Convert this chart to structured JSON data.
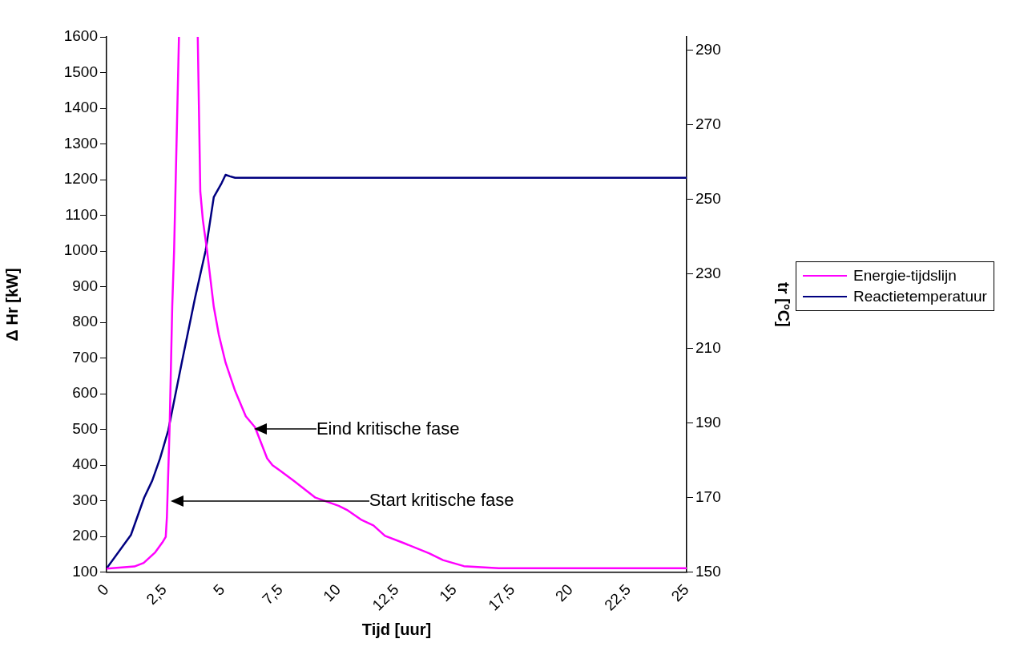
{
  "chart_data": {
    "type": "line",
    "xlabel": "Tijd [uur]",
    "ylabel": "Δ Hr [kW]",
    "y2label": "tr [°C]",
    "xlim": [
      0,
      25
    ],
    "xticks": [
      0,
      {
        "value": 2.5,
        "label": "2,5"
      },
      5,
      {
        "value": 7.5,
        "label": "7,5"
      },
      10,
      {
        "value": 12.5,
        "label": "12,5"
      },
      15,
      {
        "value": 17.5,
        "label": "17,5"
      },
      20,
      {
        "value": 22.5,
        "label": "22,5"
      },
      25
    ],
    "ylim": [
      100,
      1600
    ],
    "yticks": [
      100,
      200,
      300,
      400,
      500,
      600,
      700,
      800,
      900,
      1000,
      1100,
      1200,
      1300,
      1400,
      1500,
      1600
    ],
    "y2lim": [
      150,
      293.6
    ],
    "y2ticks": [
      150,
      170,
      190,
      210,
      230,
      250,
      270,
      290
    ],
    "grid": false,
    "legend": "right",
    "marker": "none",
    "line_style": "solid",
    "series": [
      {
        "name": "Energie-tijdslijn",
        "color": "#ff00ff",
        "x": [
          0,
          1.2,
          1.6,
          2.1,
          2.4,
          2.55,
          2.6,
          2.72,
          2.83,
          2.91,
          3.12,
          3.5,
          3.93,
          4.04,
          4.15,
          4.33,
          4.62,
          4.84,
          5.13,
          5.54,
          6.0,
          6.4,
          6.92,
          7.15,
          7.49,
          8.07,
          9.0,
          10.0,
          10.4,
          11.0,
          11.5,
          12.0,
          12.8,
          13.9,
          14.5,
          15.4,
          16.9,
          25
        ],
        "values": [
          110,
          116,
          126,
          156,
          183,
          199,
          254,
          513,
          844,
          1000,
          1600,
          null,
          1600,
          1166,
          1087,
          1001,
          844,
          765,
          687,
          608,
          537,
          506,
          419,
          400,
          384,
          356,
          309,
          286,
          273,
          246,
          231,
          202,
          182,
          153,
          134,
          117,
          111,
          111
        ]
      },
      {
        "name": "Reactietemperatuur",
        "color": "#000080",
        "axis": "y2",
        "x": [
          0,
          1.05,
          1.62,
          1.97,
          2.31,
          2.66,
          3.24,
          3.81,
          4.04,
          4.27,
          4.62,
          4.96,
          5.13,
          5.31,
          5.54,
          25
        ],
        "values": [
          151,
          160,
          170,
          174.6,
          180.6,
          188.1,
          206.2,
          223.5,
          229.9,
          236.3,
          250.6,
          254.4,
          256.6,
          256.2,
          255.8,
          255.8
        ]
      }
    ],
    "annotations": [
      "Eind kritische fase",
      "Start kritische fase"
    ]
  }
}
